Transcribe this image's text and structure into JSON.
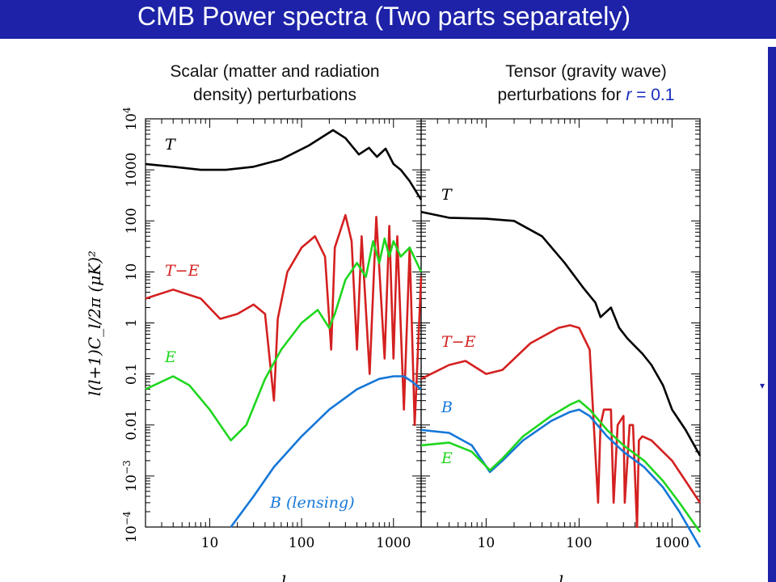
{
  "slide": {
    "title": "CMB Power spectra (Two parts separately)"
  },
  "panels": {
    "left_title": [
      "Scalar (matter and radiation",
      "density) perturbations"
    ],
    "right_title_line1": "Tensor (gravity wave)",
    "right_title_line2_prefix": "perturbations for ",
    "right_title_r": "r",
    "right_title_eq": " = 0.1"
  },
  "colors": {
    "T": "#000000",
    "TE": "#d42020",
    "E": "#1fd61f",
    "B": "#1577d8",
    "title_bar": "#1d22a8"
  },
  "chart_data": [
    {
      "type": "line",
      "title": "Scalar (matter and radiation density) perturbations",
      "xlabel": "l",
      "ylabel": "l(l+1)C_l/2π (μK)^2",
      "xscale": "log",
      "yscale": "log",
      "xlim": [
        2,
        2000
      ],
      "ylim": [
        0.0001,
        10000
      ],
      "x_ticks": [
        "10",
        "100",
        "1000"
      ],
      "y_ticks": [
        "10^-4",
        "10^-3",
        "0.01",
        "0.1",
        "1",
        "10",
        "100",
        "1000",
        "10^4"
      ],
      "series": [
        {
          "name": "T",
          "x": [
            2,
            4,
            8,
            15,
            30,
            60,
            120,
            220,
            300,
            420,
            540,
            660,
            820,
            1000,
            1200,
            1500,
            2000
          ],
          "values": [
            1300,
            1150,
            1000,
            1000,
            1150,
            1600,
            3000,
            6000,
            4200,
            2000,
            2700,
            1800,
            2600,
            1300,
            1000,
            600,
            260
          ]
        },
        {
          "name": "T-E",
          "x": [
            2,
            4,
            8,
            13,
            20,
            30,
            40,
            50,
            55,
            70,
            100,
            140,
            180,
            210,
            230,
            300,
            350,
            400,
            450,
            550,
            650,
            800,
            900,
            1000,
            1100,
            1300,
            1500,
            1700,
            2000
          ],
          "values": [
            3,
            4.5,
            3,
            1.2,
            1.5,
            2.3,
            1.5,
            0.03,
            1.2,
            10,
            30,
            50,
            20,
            0.3,
            30,
            130,
            40,
            0.3,
            50,
            0.1,
            120,
            0.2,
            80,
            0.2,
            50,
            0.02,
            30,
            0.01,
            8
          ]
        },
        {
          "name": "E",
          "x": [
            2,
            4,
            6,
            10,
            17,
            25,
            40,
            60,
            100,
            150,
            200,
            230,
            300,
            400,
            500,
            600,
            700,
            800,
            900,
            1000,
            1200,
            1500,
            2000
          ],
          "values": [
            0.05,
            0.09,
            0.06,
            0.02,
            0.005,
            0.01,
            0.08,
            0.3,
            1,
            1.8,
            0.8,
            1.5,
            7,
            15,
            8,
            40,
            15,
            45,
            20,
            40,
            20,
            30,
            10
          ]
        },
        {
          "name": "B (lensing)",
          "x": [
            17,
            30,
            50,
            100,
            200,
            400,
            700,
            1000,
            1300,
            1600,
            2000
          ],
          "values": [
            0.0001,
            0.0004,
            0.0015,
            0.006,
            0.02,
            0.05,
            0.08,
            0.09,
            0.09,
            0.07,
            0.05
          ]
        }
      ]
    },
    {
      "type": "line",
      "title": "Tensor (gravity wave) perturbations for r = 0.1",
      "xlabel": "l",
      "xscale": "log",
      "yscale": "log",
      "xlim": [
        2,
        2000
      ],
      "ylim": [
        0.0001,
        10000
      ],
      "x_ticks": [
        "10",
        "100",
        "1000"
      ],
      "series": [
        {
          "name": "T",
          "x": [
            2,
            4,
            10,
            20,
            40,
            70,
            110,
            150,
            170,
            220,
            270,
            330,
            400,
            480,
            600,
            800,
            1000,
            1400,
            2000
          ],
          "values": [
            150,
            115,
            110,
            100,
            50,
            15,
            5,
            2.5,
            1.3,
            2,
            0.8,
            0.5,
            0.35,
            0.25,
            0.15,
            0.06,
            0.02,
            0.008,
            0.0025
          ]
        },
        {
          "name": "T-E",
          "x": [
            2,
            4,
            6,
            10,
            15,
            30,
            60,
            80,
            100,
            130,
            160,
            170,
            185,
            220,
            235,
            260,
            300,
            310,
            350,
            380,
            420,
            440,
            480,
            600,
            1000,
            2000
          ],
          "values": [
            0.08,
            0.15,
            0.18,
            0.1,
            0.12,
            0.4,
            0.8,
            0.9,
            0.8,
            0.3,
            0.0003,
            0.01,
            0.02,
            0.02,
            0.0003,
            0.01,
            0.015,
            0.0003,
            0.01,
            0.01,
            0.0001,
            0.005,
            0.006,
            0.005,
            0.002,
            0.0003
          ]
        },
        {
          "name": "B",
          "x": [
            2,
            4,
            7,
            11,
            15,
            25,
            50,
            80,
            100,
            130,
            200,
            300,
            500,
            800,
            1200,
            2000
          ],
          "values": [
            0.008,
            0.007,
            0.004,
            0.0012,
            0.002,
            0.005,
            0.012,
            0.018,
            0.02,
            0.015,
            0.006,
            0.003,
            0.0015,
            0.0006,
            0.0002,
            4e-05
          ]
        },
        {
          "name": "E",
          "x": [
            2,
            4,
            7,
            11,
            15,
            25,
            50,
            80,
            100,
            130,
            200,
            300,
            500,
            800,
            1200,
            2000
          ],
          "values": [
            0.004,
            0.0045,
            0.003,
            0.0013,
            0.0022,
            0.006,
            0.015,
            0.025,
            0.03,
            0.02,
            0.008,
            0.004,
            0.002,
            0.0008,
            0.0003,
            8e-05
          ]
        }
      ],
      "labels": [
        "T",
        "T−E",
        "B",
        "E"
      ]
    }
  ],
  "labels": {
    "left": {
      "T": "T",
      "TE": "T−E",
      "E": "E",
      "B": "B (lensing)"
    },
    "right": {
      "T": "T",
      "TE": "T−E",
      "B": "B",
      "E": "E"
    },
    "y_axis": "l(l+1)C_l/2π  (μK)^2",
    "x_axis_left": "l",
    "x_axis_right": "l",
    "y_ticks": [
      "10^-4",
      "10^-3",
      "0.01",
      "0.1",
      "1",
      "10",
      "100",
      "1000",
      "10^4"
    ],
    "x_ticks_left": [
      "10",
      "100",
      "1000"
    ],
    "x_ticks_right": [
      "10",
      "100",
      "1000"
    ]
  }
}
